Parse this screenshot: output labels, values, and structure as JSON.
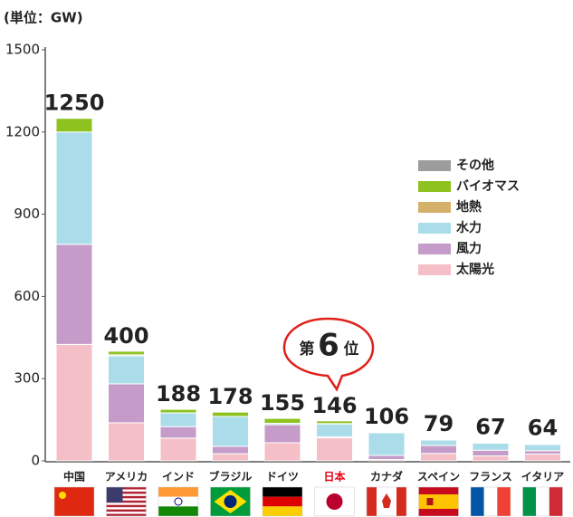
{
  "chart_data": {
    "type": "bar",
    "stacked": true,
    "y_label": "(単位：GW)",
    "categories": [
      "中国",
      "アメリカ",
      "インド",
      "ブラジル",
      "ドイツ",
      "日本",
      "カナダ",
      "スペイン",
      "フランス",
      "イタリア"
    ],
    "totals": [
      1250,
      400,
      188,
      178,
      155,
      146,
      106,
      79,
      67,
      64
    ],
    "series": [
      {
        "name": "太陽光",
        "color": "#f5bfc8",
        "values": [
          425,
          139,
          83,
          26,
          66,
          84,
          5,
          27,
          18,
          25
        ]
      },
      {
        "name": "風力",
        "color": "#c49bc9",
        "values": [
          365,
          142,
          42,
          27,
          66,
          4,
          15,
          29,
          21,
          12
        ]
      },
      {
        "name": "水力",
        "color": "#aadcea",
        "values": [
          410,
          102,
          50,
          109,
          5,
          47,
          83,
          20,
          26,
          23
        ]
      },
      {
        "name": "地熱",
        "color": "#d5b06a",
        "values": [
          0,
          4,
          0,
          0,
          0,
          1,
          0,
          0,
          0,
          1
        ]
      },
      {
        "name": "バイオマス",
        "color": "#8dc21f",
        "values": [
          50,
          13,
          13,
          16,
          18,
          10,
          3,
          3,
          2,
          3
        ]
      },
      {
        "name": "その他",
        "color": "#9d9d9d",
        "values": [
          0,
          0,
          0,
          0,
          0,
          0,
          0,
          0,
          0,
          0
        ]
      }
    ],
    "ylim": [
      0,
      1500
    ],
    "yticks": [
      0,
      300,
      600,
      900,
      1200,
      1500
    ],
    "grid": false,
    "annotation": {
      "prefix": "第",
      "rank": "6",
      "suffix": "位"
    }
  }
}
